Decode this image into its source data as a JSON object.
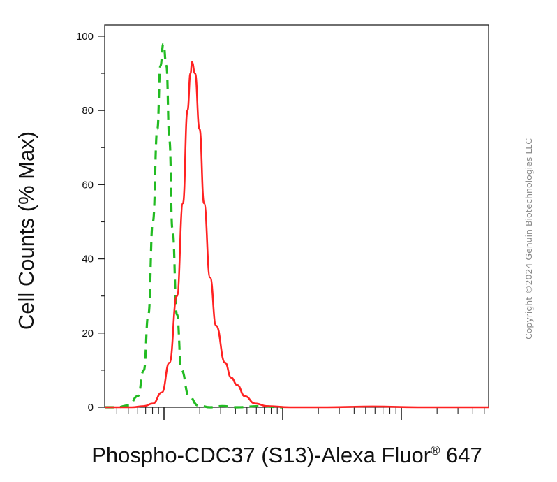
{
  "chart_data": {
    "type": "line",
    "title": "",
    "xlabel": "Phospho-CDC37 (S13)-Alexa Fluor",
    "xlabel_superscript": "®",
    "xlabel_suffix": " 647",
    "ylabel": "Cell Counts (% Max)",
    "ylim": [
      0,
      103
    ],
    "yticks": [
      "0",
      "20",
      "40",
      "60",
      "80",
      "100"
    ],
    "x_scale": "log",
    "x_tick_labels": [],
    "grid": false,
    "legend": "none",
    "series": [
      {
        "color": "#22bb22",
        "style": "dashed",
        "x": [
          0.12,
          0.2,
          0.28,
          0.34,
          0.38,
          0.41,
          0.44,
          0.47,
          0.49,
          0.51,
          0.53,
          0.55,
          0.57,
          0.6,
          0.63,
          0.68,
          0.74,
          0.82,
          0.9,
          1.0,
          1.15,
          1.3
        ],
        "y": [
          0,
          0,
          0.5,
          3,
          10,
          25,
          50,
          75,
          92,
          98,
          92,
          72,
          48,
          25,
          10,
          3,
          0.5,
          0,
          0.3,
          0,
          0.3,
          0
        ]
      },
      {
        "color": "#ff2222",
        "style": "solid",
        "x": [
          0.12,
          0.3,
          0.38,
          0.44,
          0.5,
          0.55,
          0.6,
          0.64,
          0.67,
          0.69,
          0.7,
          0.72,
          0.75,
          0.78,
          0.82,
          0.86,
          0.92,
          0.96,
          1.0,
          1.05,
          1.12,
          1.2,
          1.35,
          1.6,
          1.9,
          2.2,
          2.67
        ],
        "y": [
          0,
          0,
          0.3,
          1,
          4,
          12,
          30,
          55,
          80,
          90,
          93,
          90,
          75,
          55,
          35,
          22,
          12,
          8,
          6,
          3,
          1,
          0.3,
          0,
          0,
          0.2,
          0,
          0
        ]
      }
    ]
  },
  "watermark": "Copyright ©2024 Genuin Biotechnologies LLC"
}
